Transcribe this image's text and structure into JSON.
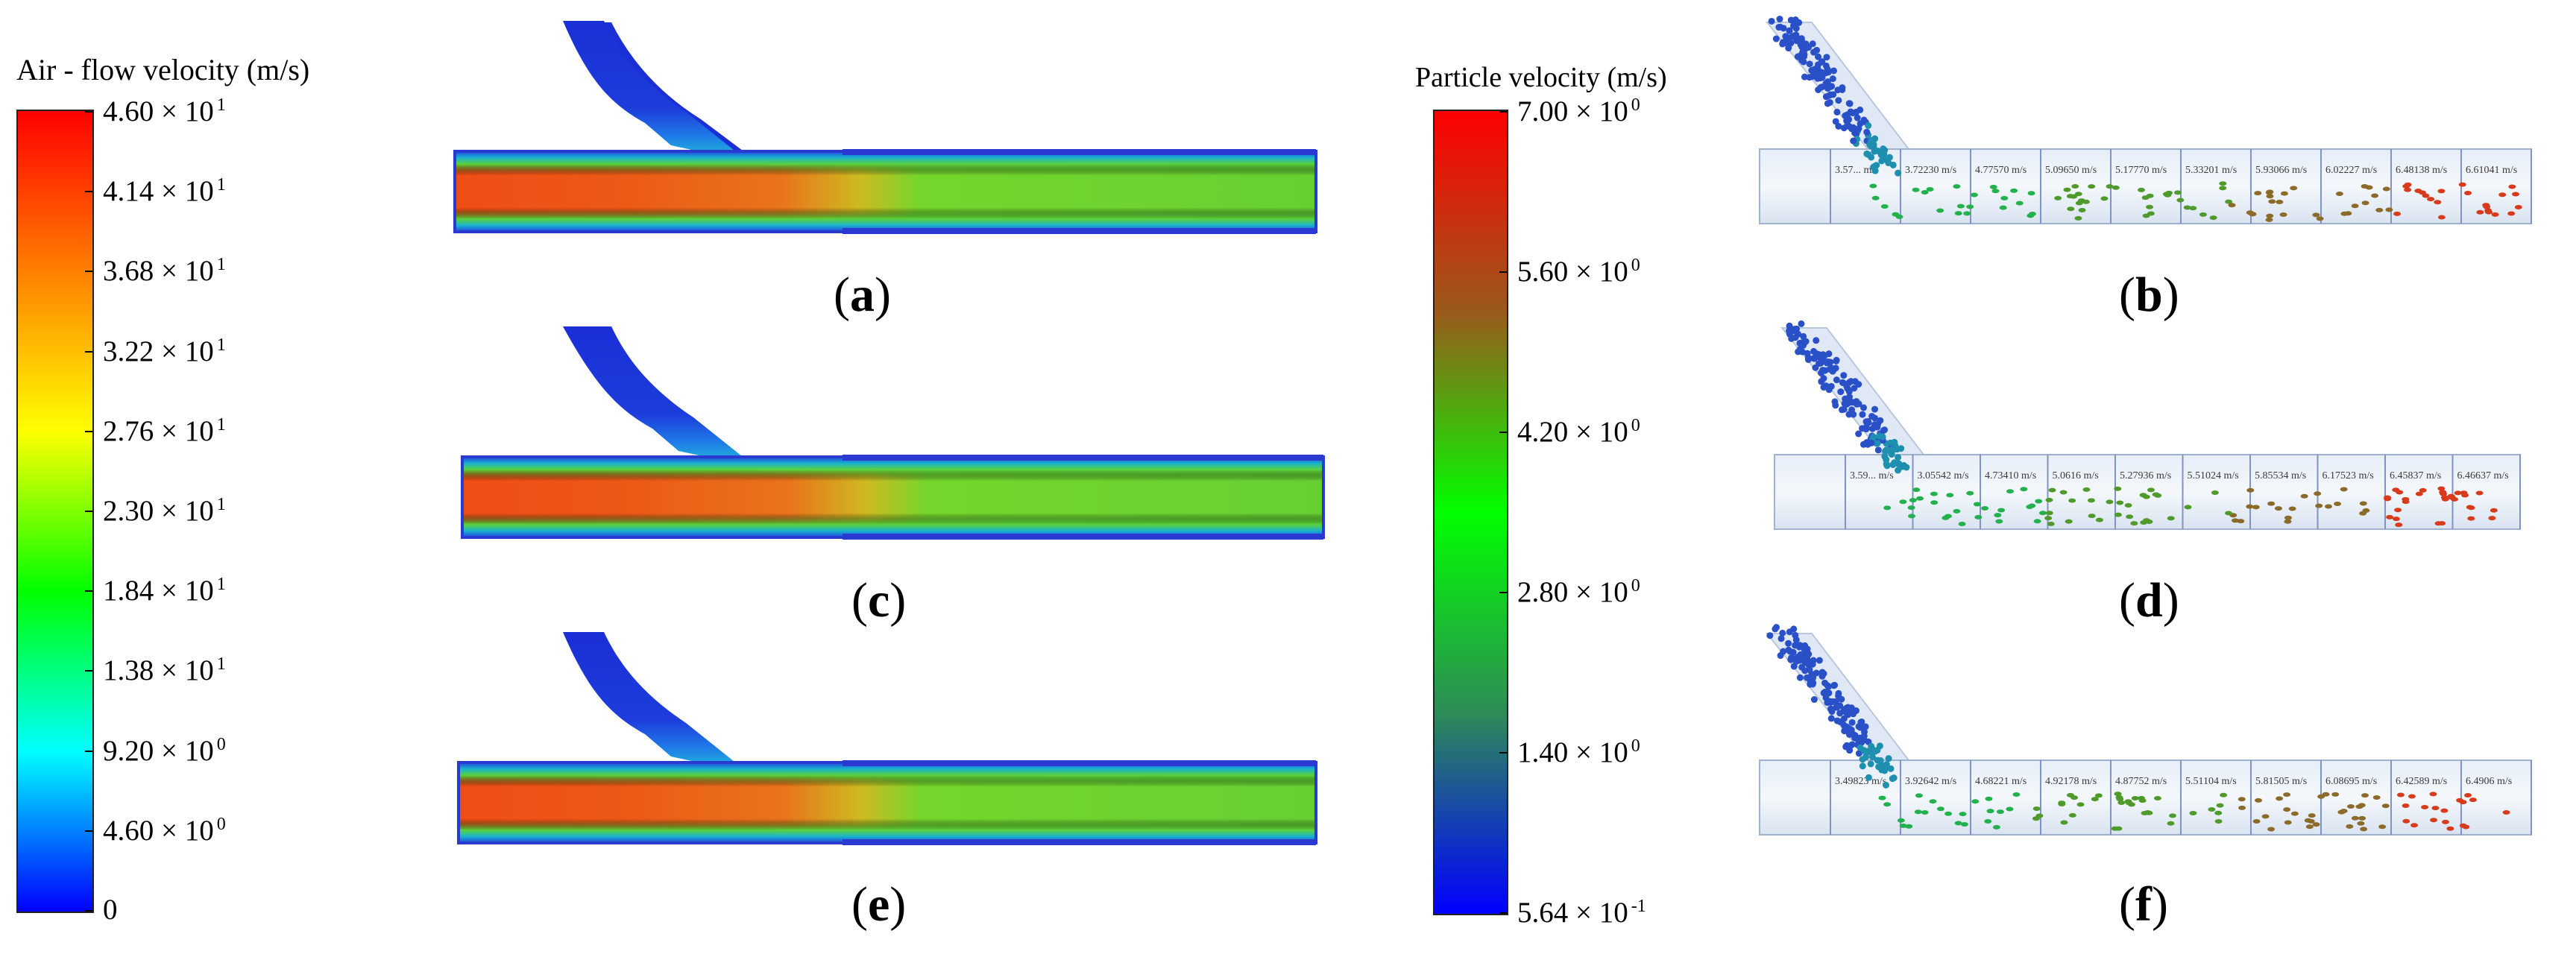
{
  "left_colorbar": {
    "title": "Air - flow velocity (m/s)",
    "ticks": [
      {
        "mantissa": "4.60 × 10",
        "exp": "1"
      },
      {
        "mantissa": "4.14 × 10",
        "exp": "1"
      },
      {
        "mantissa": "3.68 × 10",
        "exp": "1"
      },
      {
        "mantissa": "3.22 × 10",
        "exp": "1"
      },
      {
        "mantissa": "2.76 × 10",
        "exp": "1"
      },
      {
        "mantissa": "2.30 × 10",
        "exp": "1"
      },
      {
        "mantissa": "1.84 × 10",
        "exp": "1"
      },
      {
        "mantissa": "1.38 × 10",
        "exp": "1"
      },
      {
        "mantissa": "9.20 × 10",
        "exp": "0"
      },
      {
        "mantissa": "4.60 × 10",
        "exp": "0"
      },
      {
        "mantissa": "0",
        "exp": ""
      }
    ],
    "colors": [
      "#ff0000",
      "#ff7f00",
      "#ffff00",
      "#00ff00",
      "#00ffff",
      "#0000ff"
    ]
  },
  "right_colorbar": {
    "title": "Particle velocity (m/s)",
    "ticks": [
      {
        "mantissa": "7.00 × 10",
        "exp": "0"
      },
      {
        "mantissa": "5.60 × 10",
        "exp": "0"
      },
      {
        "mantissa": "4.20 × 10",
        "exp": "0"
      },
      {
        "mantissa": "2.80 × 10",
        "exp": "0"
      },
      {
        "mantissa": "1.40 × 10",
        "exp": "0"
      },
      {
        "mantissa": "5.64 × 10",
        "exp": "-1"
      }
    ],
    "colors": [
      "#ff0000",
      "#9a5a1c",
      "#00ff00",
      "#2e8b57",
      "#0000ff"
    ]
  },
  "panels": {
    "a": "a",
    "b": "b",
    "c": "c",
    "d": "d",
    "e": "e",
    "f": "f"
  },
  "particle_labels": {
    "b": [
      "3.57... m/s",
      "3.72230 m/s",
      "4.77570 m/s",
      "5.09650 m/s",
      "5.17770 m/s",
      "5.33201 m/s",
      "5.93066 m/s",
      "6.02227 m/s",
      "6.48138 m/s",
      "6.61041 m/s"
    ],
    "d": [
      "3.59... m/s",
      "3.05542 m/s",
      "4.73410 m/s",
      "5.0616 m/s",
      "5.27936 m/s",
      "5.51024 m/s",
      "5.85534 m/s",
      "6.17523 m/s",
      "6.45837 m/s",
      "6.46637 m/s"
    ],
    "f": [
      "3.49823 m/s",
      "3.92642 m/s",
      "4.68221 m/s",
      "4.92178 m/s",
      "4.87752 m/s",
      "5.51104 m/s",
      "5.81505 m/s",
      "6.08695 m/s",
      "6.42589 m/s",
      "6.4906 m/s"
    ]
  }
}
